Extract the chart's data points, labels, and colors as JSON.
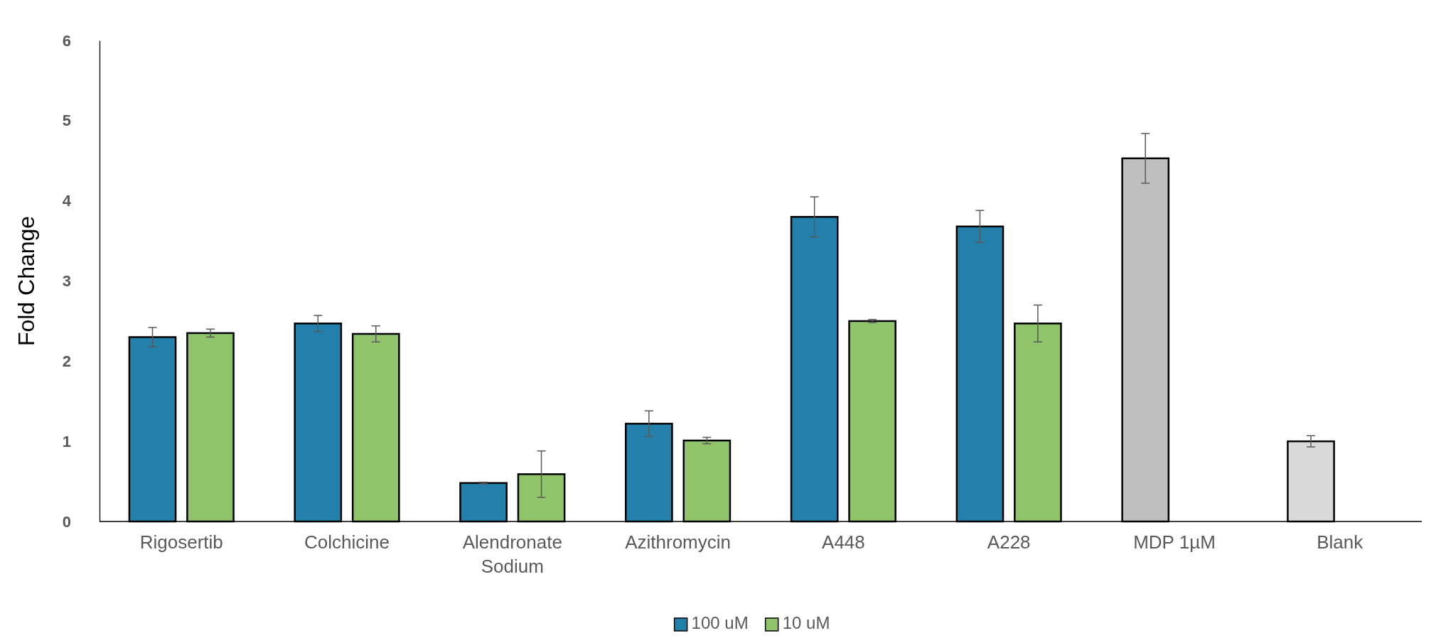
{
  "chart_data": {
    "type": "bar",
    "ylabel": "Fold Change",
    "categories": [
      "Rigosertib",
      "Colchicine",
      "Alendronate Sodium",
      "Azithromycin",
      "A448",
      "A228",
      "MDP 1µM",
      "Blank"
    ],
    "series": [
      {
        "name": "100 uM",
        "color": "#2380aa",
        "colors": [
          "#2380aa",
          "#2380aa",
          "#2380aa",
          "#2380aa",
          "#2380aa",
          "#2380aa",
          "#bfbfbf",
          "#d9d9d9"
        ],
        "values": [
          2.3,
          2.47,
          0.48,
          1.22,
          3.8,
          3.68,
          4.53,
          1.0
        ],
        "errors": [
          0.12,
          0.1,
          0.01,
          0.16,
          0.25,
          0.2,
          0.31,
          0.07
        ]
      },
      {
        "name": "10 uM",
        "color": "#8fc46a",
        "values": [
          2.35,
          2.34,
          0.59,
          1.01,
          2.5,
          2.47,
          null,
          null
        ],
        "errors": [
          0.05,
          0.1,
          0.29,
          0.04,
          0.02,
          0.23,
          null,
          null
        ]
      }
    ],
    "ylim": [
      0,
      6
    ],
    "yticks": [
      0,
      1,
      2,
      3,
      4,
      5,
      6
    ],
    "legend": "bottom"
  }
}
